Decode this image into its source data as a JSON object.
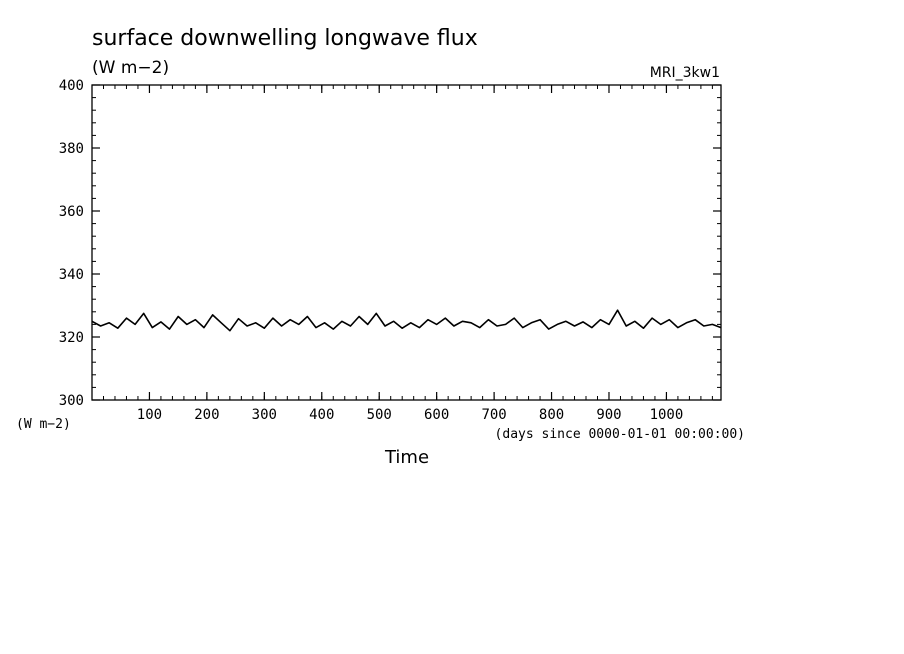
{
  "chart_data": {
    "type": "line",
    "title": "surface downwelling longwave flux",
    "units": "(W m−2)",
    "dataset": "MRI_3kw1",
    "ylabel": "(W m−2)",
    "xlabel": "Time",
    "xunits": "(days since 0000-01-01 00:00:00)",
    "xlim": [
      0,
      1095
    ],
    "ylim": [
      300,
      400
    ],
    "xticks": [
      100,
      200,
      300,
      400,
      500,
      600,
      700,
      800,
      900,
      1000
    ],
    "yticks": [
      300,
      320,
      340,
      360,
      380,
      400
    ],
    "line_color": "#000000",
    "series": [
      {
        "x": [
          0,
          15,
          30,
          45,
          60,
          75,
          90,
          105,
          120,
          135,
          150,
          165,
          180,
          195,
          210,
          225,
          240,
          255,
          270,
          285,
          300,
          315,
          330,
          345,
          360,
          375,
          390,
          405,
          420,
          435,
          450,
          465,
          480,
          495,
          510,
          525,
          540,
          555,
          570,
          585,
          600,
          615,
          630,
          645,
          660,
          675,
          690,
          705,
          720,
          735,
          750,
          765,
          780,
          795,
          810,
          825,
          840,
          855,
          870,
          885,
          900,
          915,
          930,
          945,
          960,
          975,
          990,
          1005,
          1020,
          1035,
          1050,
          1065,
          1080,
          1095
        ],
        "y": [
          325.0,
          323.5,
          324.5,
          322.8,
          326.0,
          324.0,
          327.5,
          323.0,
          324.8,
          322.5,
          326.5,
          324.0,
          325.5,
          323.0,
          327.0,
          324.5,
          322.0,
          325.8,
          323.5,
          324.5,
          322.8,
          326.0,
          323.5,
          325.5,
          324.0,
          326.5,
          323.0,
          324.5,
          322.5,
          325.0,
          323.5,
          326.5,
          324.0,
          327.5,
          323.5,
          325.0,
          322.8,
          324.5,
          323.0,
          325.5,
          324.0,
          326.0,
          323.5,
          325.0,
          324.5,
          323.0,
          325.5,
          323.5,
          324.0,
          326.0,
          323.0,
          324.5,
          325.5,
          322.5,
          324.0,
          325.0,
          323.5,
          324.8,
          323.0,
          325.5,
          324.0,
          328.5,
          323.5,
          325.0,
          322.8,
          326.0,
          324.0,
          325.5,
          323.0,
          324.5,
          325.5,
          323.5,
          324.0,
          323.0
        ]
      }
    ]
  }
}
